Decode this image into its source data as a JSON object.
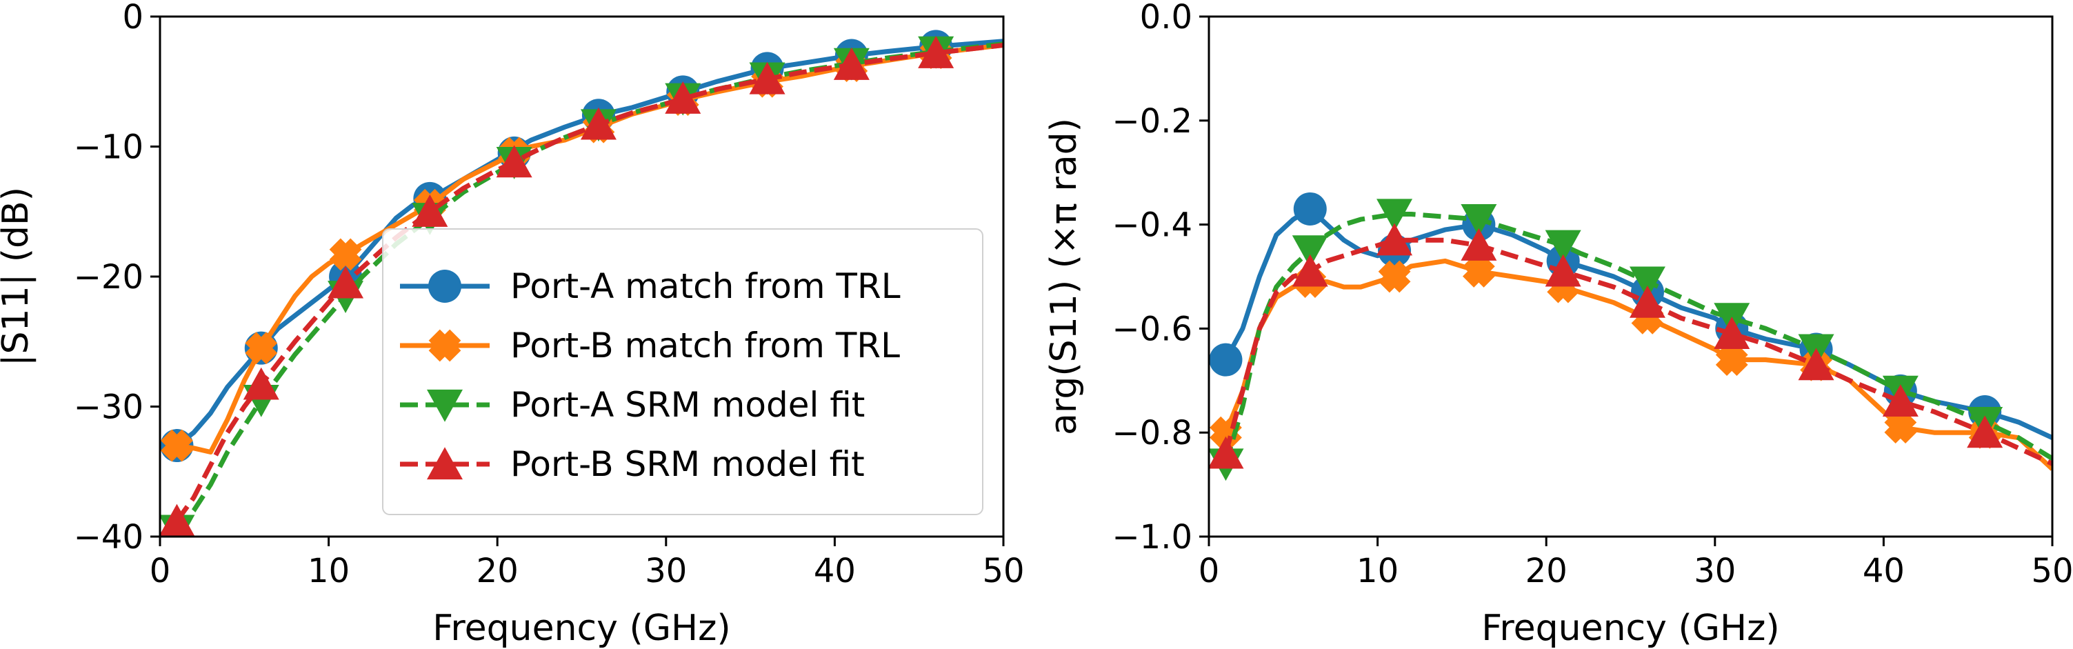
{
  "chart_data": [
    {
      "type": "line",
      "xlabel": "Frequency (GHz)",
      "ylabel": "|S11| (dB)",
      "xlim": [
        0,
        50
      ],
      "ylim": [
        -40,
        0
      ],
      "xticks": [
        0,
        10,
        20,
        30,
        40,
        50
      ],
      "xtick_labels": [
        "0",
        "10",
        "20",
        "30",
        "40",
        "50"
      ],
      "yticks": [
        -40,
        -30,
        -20,
        -10,
        0
      ],
      "ytick_labels": [
        "−40",
        "−30",
        "−20",
        "−10",
        "0"
      ],
      "grid": false,
      "legend": "lower-right",
      "series": [
        {
          "name": "Port-A match from TRL",
          "color": "#1f77b4",
          "dash": "solid",
          "marker": "circle",
          "x": [
            1,
            2,
            3,
            4,
            5,
            6,
            7,
            8,
            9,
            10,
            11,
            12,
            13,
            14,
            15,
            16,
            18,
            20,
            22,
            24,
            26,
            28,
            30,
            31,
            33,
            36,
            38,
            41,
            43,
            46,
            48,
            50
          ],
          "y": [
            -33,
            -32,
            -30.5,
            -28.5,
            -27,
            -25.5,
            -24,
            -23,
            -22,
            -21,
            -20,
            -18.5,
            -17,
            -15.5,
            -14.5,
            -14,
            -12.5,
            -11,
            -9.5,
            -8.5,
            -7.6,
            -7,
            -6.2,
            -5.8,
            -5,
            -4,
            -3.6,
            -3,
            -2.7,
            -2.3,
            -2.1,
            -1.9
          ],
          "marker_x": [
            1,
            6,
            11,
            16,
            21,
            26,
            31,
            36,
            41,
            46
          ],
          "marker_y": [
            -33,
            -25.5,
            -20,
            -14,
            -10.5,
            -7.6,
            -5.8,
            -4,
            -3,
            -2.3
          ]
        },
        {
          "name": "Port-B match from TRL",
          "color": "#ff7f0e",
          "dash": "solid",
          "marker": "x",
          "x": [
            1,
            2,
            3,
            4,
            5,
            6,
            7,
            8,
            9,
            10,
            11,
            12,
            14,
            16,
            18,
            20,
            21,
            22,
            24,
            26,
            28,
            30,
            31,
            33,
            36,
            38,
            41,
            43,
            46,
            48,
            50
          ],
          "y": [
            -33,
            -33.2,
            -33.5,
            -31,
            -28,
            -25.5,
            -23.5,
            -21.5,
            -20,
            -19,
            -18.3,
            -17.5,
            -16,
            -14.5,
            -12.5,
            -11.2,
            -10.5,
            -10,
            -9.5,
            -8.5,
            -7.5,
            -6.8,
            -6.4,
            -5.8,
            -5,
            -4.6,
            -3.8,
            -3.4,
            -2.8,
            -2.5,
            -2.2
          ],
          "marker_x": [
            1,
            6,
            11,
            16,
            21,
            26,
            31,
            36,
            41,
            46
          ],
          "marker_y": [
            -33,
            -25.5,
            -18.3,
            -14.5,
            -10.5,
            -8.5,
            -6.4,
            -5,
            -3.8,
            -2.8
          ]
        },
        {
          "name": "Port-A SRM model fit",
          "color": "#2ca02c",
          "dash": "dashed",
          "marker": "triangle-down",
          "x": [
            1,
            2,
            3,
            4,
            5,
            6,
            8,
            10,
            11,
            12,
            14,
            16,
            18,
            20,
            21,
            22,
            24,
            26,
            28,
            30,
            31,
            33,
            36,
            38,
            41,
            43,
            46,
            48,
            50
          ],
          "y": [
            -39.5,
            -38,
            -36,
            -33.5,
            -31.5,
            -29.5,
            -26,
            -23,
            -21.5,
            -20,
            -17.5,
            -15.5,
            -13.5,
            -12,
            -11.2,
            -10.5,
            -9.3,
            -8.3,
            -7.4,
            -6.7,
            -6.3,
            -5.6,
            -4.7,
            -4.2,
            -3.6,
            -3.2,
            -2.7,
            -2.4,
            -2.1
          ],
          "marker_x": [
            1,
            6,
            11,
            16,
            21,
            26,
            31,
            36,
            41,
            46
          ],
          "marker_y": [
            -39.5,
            -29.5,
            -21.5,
            -15.5,
            -11.2,
            -8.3,
            -6.3,
            -4.7,
            -3.6,
            -2.7
          ]
        },
        {
          "name": "Port-B SRM model fit",
          "color": "#d62728",
          "dash": "dashed",
          "marker": "triangle-up",
          "x": [
            1,
            2,
            3,
            4,
            5,
            6,
            8,
            10,
            11,
            12,
            14,
            16,
            18,
            20,
            21,
            22,
            24,
            26,
            28,
            30,
            31,
            33,
            36,
            38,
            41,
            43,
            46,
            48,
            50
          ],
          "y": [
            -38.8,
            -37,
            -34.5,
            -32,
            -30,
            -28.3,
            -25,
            -22,
            -20.5,
            -19.3,
            -17,
            -15,
            -13.2,
            -11.8,
            -11.2,
            -10.5,
            -9.3,
            -8.3,
            -7.4,
            -6.7,
            -6.3,
            -5.6,
            -4.8,
            -4.3,
            -3.7,
            -3.3,
            -2.8,
            -2.5,
            -2.2
          ],
          "marker_x": [
            1,
            6,
            11,
            16,
            21,
            26,
            31,
            36,
            41,
            46
          ],
          "marker_y": [
            -38.8,
            -28.3,
            -20.5,
            -15,
            -11.2,
            -8.3,
            -6.3,
            -4.8,
            -3.7,
            -2.8
          ]
        }
      ]
    },
    {
      "type": "line",
      "xlabel": "Frequency (GHz)",
      "ylabel": "arg(S11) (×π rad)",
      "xlim": [
        0,
        50
      ],
      "ylim": [
        -1.0,
        0.0
      ],
      "xticks": [
        0,
        10,
        20,
        30,
        40,
        50
      ],
      "xtick_labels": [
        "0",
        "10",
        "20",
        "30",
        "40",
        "50"
      ],
      "yticks": [
        -1.0,
        -0.8,
        -0.6,
        -0.4,
        -0.2,
        0.0
      ],
      "ytick_labels": [
        "−1.0",
        "−0.8",
        "−0.6",
        "−0.4",
        "−0.2",
        "0.0"
      ],
      "grid": false,
      "series": [
        {
          "name": "Port-A match from TRL",
          "color": "#1f77b4",
          "dash": "solid",
          "marker": "circle",
          "x": [
            1,
            2,
            3,
            4,
            5,
            6,
            7,
            8,
            9,
            10,
            11,
            12,
            14,
            16,
            18,
            20,
            21,
            22,
            24,
            26,
            28,
            30,
            31,
            33,
            36,
            38,
            41,
            43,
            46,
            48,
            50
          ],
          "y": [
            -0.66,
            -0.6,
            -0.5,
            -0.42,
            -0.39,
            -0.37,
            -0.4,
            -0.43,
            -0.45,
            -0.46,
            -0.45,
            -0.43,
            -0.41,
            -0.4,
            -0.42,
            -0.45,
            -0.47,
            -0.48,
            -0.5,
            -0.53,
            -0.56,
            -0.58,
            -0.6,
            -0.62,
            -0.64,
            -0.67,
            -0.72,
            -0.74,
            -0.76,
            -0.78,
            -0.81
          ],
          "marker_x": [
            1,
            6,
            11,
            16,
            21,
            26,
            31,
            36,
            41,
            46
          ],
          "marker_y": [
            -0.66,
            -0.37,
            -0.45,
            -0.4,
            -0.47,
            -0.53,
            -0.6,
            -0.64,
            -0.72,
            -0.76
          ]
        },
        {
          "name": "Port-B match from TRL",
          "color": "#ff7f0e",
          "dash": "solid",
          "marker": "x",
          "x": [
            1,
            2,
            3,
            4,
            5,
            6,
            7,
            8,
            9,
            10,
            11,
            12,
            14,
            16,
            18,
            20,
            21,
            22,
            24,
            26,
            28,
            30,
            31,
            33,
            36,
            38,
            41,
            43,
            46,
            48,
            50
          ],
          "y": [
            -0.8,
            -0.72,
            -0.6,
            -0.54,
            -0.52,
            -0.51,
            -0.51,
            -0.52,
            -0.52,
            -0.51,
            -0.5,
            -0.48,
            -0.47,
            -0.49,
            -0.5,
            -0.51,
            -0.52,
            -0.53,
            -0.55,
            -0.58,
            -0.61,
            -0.64,
            -0.66,
            -0.66,
            -0.67,
            -0.7,
            -0.79,
            -0.8,
            -0.8,
            -0.81,
            -0.87
          ],
          "marker_x": [
            1,
            6,
            11,
            16,
            21,
            26,
            31,
            36,
            41,
            46
          ],
          "marker_y": [
            -0.8,
            -0.51,
            -0.5,
            -0.49,
            -0.52,
            -0.58,
            -0.66,
            -0.67,
            -0.79,
            -0.8
          ]
        },
        {
          "name": "Port-A SRM model fit",
          "color": "#2ca02c",
          "dash": "dashed",
          "marker": "triangle-down",
          "x": [
            1,
            2,
            3,
            4,
            5,
            6,
            7,
            8,
            9,
            10,
            11,
            12,
            14,
            16,
            18,
            20,
            21,
            22,
            24,
            26,
            28,
            30,
            31,
            33,
            36,
            38,
            41,
            43,
            46,
            48,
            50
          ],
          "y": [
            -0.86,
            -0.75,
            -0.6,
            -0.52,
            -0.48,
            -0.45,
            -0.42,
            -0.4,
            -0.39,
            -0.385,
            -0.38,
            -0.38,
            -0.385,
            -0.39,
            -0.41,
            -0.43,
            -0.44,
            -0.455,
            -0.48,
            -0.51,
            -0.54,
            -0.57,
            -0.58,
            -0.6,
            -0.64,
            -0.67,
            -0.72,
            -0.74,
            -0.78,
            -0.81,
            -0.85
          ],
          "marker_x": [
            1,
            6,
            11,
            16,
            21,
            26,
            31,
            36,
            41,
            46
          ],
          "marker_y": [
            -0.86,
            -0.45,
            -0.38,
            -0.39,
            -0.44,
            -0.51,
            -0.58,
            -0.64,
            -0.72,
            -0.78
          ]
        },
        {
          "name": "Port-B SRM model fit",
          "color": "#d62728",
          "dash": "dashed",
          "marker": "triangle-up",
          "x": [
            1,
            2,
            3,
            4,
            5,
            6,
            7,
            8,
            9,
            10,
            11,
            12,
            14,
            16,
            18,
            20,
            21,
            22,
            24,
            26,
            28,
            30,
            31,
            33,
            36,
            38,
            41,
            43,
            46,
            48,
            50
          ],
          "y": [
            -0.84,
            -0.72,
            -0.6,
            -0.53,
            -0.5,
            -0.49,
            -0.47,
            -0.46,
            -0.45,
            -0.44,
            -0.43,
            -0.43,
            -0.43,
            -0.44,
            -0.46,
            -0.48,
            -0.49,
            -0.5,
            -0.52,
            -0.55,
            -0.58,
            -0.6,
            -0.61,
            -0.63,
            -0.67,
            -0.7,
            -0.74,
            -0.76,
            -0.8,
            -0.83,
            -0.86
          ],
          "marker_x": [
            1,
            6,
            11,
            16,
            21,
            26,
            31,
            36,
            41,
            46
          ],
          "marker_y": [
            -0.84,
            -0.49,
            -0.43,
            -0.44,
            -0.49,
            -0.55,
            -0.61,
            -0.67,
            -0.74,
            -0.8
          ]
        }
      ]
    }
  ]
}
